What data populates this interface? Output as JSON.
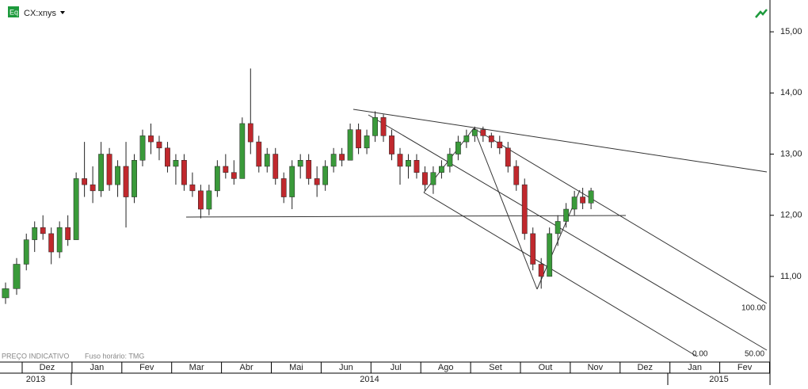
{
  "header": {
    "symbol": "CX:xnys"
  },
  "footer": {
    "price_note": "PREÇO INDICATIVO",
    "timezone": "Fuso horário: TMG"
  },
  "annotations": {
    "fib_100": "100.00",
    "fib_0": "0.00",
    "fib_50": "50.00"
  },
  "chart_data": {
    "type": "candlestick",
    "up_color": "#3a9a3a",
    "down_color": "#c0282d",
    "ylim": [
      9.6,
      15.52
    ],
    "yticks": [
      {
        "value": 15,
        "label": "15,00"
      },
      {
        "value": 14,
        "label": "14,00"
      },
      {
        "value": 13,
        "label": "13,00"
      },
      {
        "value": 12,
        "label": "12,00"
      },
      {
        "value": 11,
        "label": "11,00"
      }
    ],
    "categories": [
      null,
      "Dez",
      "Jan",
      "Fev",
      "Mar",
      "Abr",
      "Mai",
      "Jun",
      "Jul",
      "Ago",
      "Set",
      "Out",
      "Nov",
      "Dez",
      "Jan",
      "Fev"
    ],
    "years": [
      "2013",
      "2014",
      "2015"
    ],
    "candles": [
      [
        [
          10.65,
          10.9,
          10.55,
          10.8
        ],
        [
          10.8,
          11.3,
          10.7,
          11.2
        ]
      ],
      [
        [
          11.2,
          11.7,
          11.1,
          11.6
        ],
        [
          11.6,
          11.9,
          11.4,
          11.8
        ],
        [
          11.8,
          12.0,
          11.6,
          11.7
        ],
        [
          11.7,
          11.8,
          11.2,
          11.4
        ],
        [
          11.4,
          11.9,
          11.3,
          11.8
        ],
        [
          11.8,
          12.0,
          11.5,
          11.6
        ]
      ],
      [
        [
          11.6,
          12.7,
          11.6,
          12.6
        ],
        [
          12.6,
          13.2,
          12.3,
          12.5
        ],
        [
          12.5,
          12.8,
          12.2,
          12.4
        ],
        [
          12.4,
          13.2,
          12.3,
          13.0
        ],
        [
          13.0,
          13.1,
          12.4,
          12.5
        ],
        [
          12.5,
          12.9,
          12.3,
          12.8
        ]
      ],
      [
        [
          12.8,
          13.2,
          11.8,
          12.3
        ],
        [
          12.3,
          13.0,
          12.2,
          12.9
        ],
        [
          12.9,
          13.4,
          12.8,
          13.3
        ],
        [
          13.3,
          13.5,
          13.0,
          13.2
        ],
        [
          13.2,
          13.3,
          12.9,
          13.1
        ],
        [
          13.1,
          13.2,
          12.7,
          12.8
        ]
      ],
      [
        [
          12.8,
          13.0,
          12.5,
          12.9
        ],
        [
          12.9,
          13.0,
          12.4,
          12.5
        ],
        [
          12.5,
          12.7,
          12.3,
          12.4
        ],
        [
          12.4,
          12.5,
          11.95,
          12.1
        ],
        [
          12.1,
          12.5,
          12.0,
          12.4
        ],
        [
          12.4,
          12.9,
          12.3,
          12.8
        ]
      ],
      [
        [
          12.8,
          13.0,
          12.6,
          12.7
        ],
        [
          12.7,
          12.9,
          12.5,
          12.6
        ],
        [
          12.6,
          13.6,
          12.6,
          13.5
        ],
        [
          13.5,
          14.4,
          13.0,
          13.2
        ],
        [
          13.2,
          13.3,
          12.7,
          12.8
        ],
        [
          12.8,
          13.1,
          12.7,
          13.0
        ]
      ],
      [
        [
          13.0,
          13.1,
          12.5,
          12.6
        ],
        [
          12.6,
          12.7,
          12.2,
          12.3
        ],
        [
          12.3,
          12.9,
          12.1,
          12.8
        ],
        [
          12.8,
          13.0,
          12.6,
          12.9
        ],
        [
          12.9,
          13.0,
          12.5,
          12.6
        ],
        [
          12.6,
          12.8,
          12.3,
          12.5
        ]
      ],
      [
        [
          12.5,
          12.9,
          12.4,
          12.8
        ],
        [
          12.8,
          13.1,
          12.7,
          13.0
        ],
        [
          13.0,
          13.1,
          12.8,
          12.9
        ],
        [
          12.9,
          13.5,
          12.9,
          13.4
        ],
        [
          13.4,
          13.5,
          13.0,
          13.1
        ],
        [
          13.1,
          13.4,
          13.0,
          13.3
        ]
      ],
      [
        [
          13.3,
          13.7,
          13.2,
          13.6
        ],
        [
          13.6,
          13.65,
          13.2,
          13.3
        ],
        [
          13.3,
          13.4,
          12.9,
          13.0
        ],
        [
          13.0,
          13.1,
          12.5,
          12.8
        ],
        [
          12.8,
          13.0,
          12.6,
          12.9
        ],
        [
          12.9,
          13.0,
          12.6,
          12.7
        ]
      ],
      [
        [
          12.7,
          12.8,
          12.4,
          12.5
        ],
        [
          12.5,
          12.8,
          12.35,
          12.7
        ],
        [
          12.7,
          12.9,
          12.6,
          12.8
        ],
        [
          12.8,
          13.1,
          12.7,
          13.0
        ],
        [
          13.0,
          13.3,
          12.9,
          13.2
        ],
        [
          13.2,
          13.4,
          13.1,
          13.3
        ]
      ],
      [
        [
          13.3,
          13.45,
          13.2,
          13.4
        ],
        [
          13.4,
          13.45,
          13.2,
          13.3
        ],
        [
          13.3,
          13.35,
          13.1,
          13.2
        ],
        [
          13.2,
          13.3,
          13.0,
          13.1
        ],
        [
          13.1,
          13.2,
          12.7,
          12.8
        ],
        [
          12.8,
          12.9,
          12.4,
          12.5
        ]
      ],
      [
        [
          12.5,
          12.6,
          11.6,
          11.7
        ],
        [
          11.7,
          11.8,
          11.1,
          11.2
        ],
        [
          11.2,
          11.3,
          10.8,
          11.0
        ],
        [
          11.0,
          11.8,
          11.0,
          11.7
        ],
        [
          11.7,
          12.0,
          11.5,
          11.9
        ],
        [
          11.9,
          12.2,
          11.8,
          12.1
        ]
      ],
      [
        [
          12.1,
          12.4,
          12.0,
          12.3
        ],
        [
          12.3,
          12.45,
          12.1,
          12.2
        ],
        [
          12.2,
          12.45,
          12.1,
          12.4
        ]
      ]
    ]
  }
}
